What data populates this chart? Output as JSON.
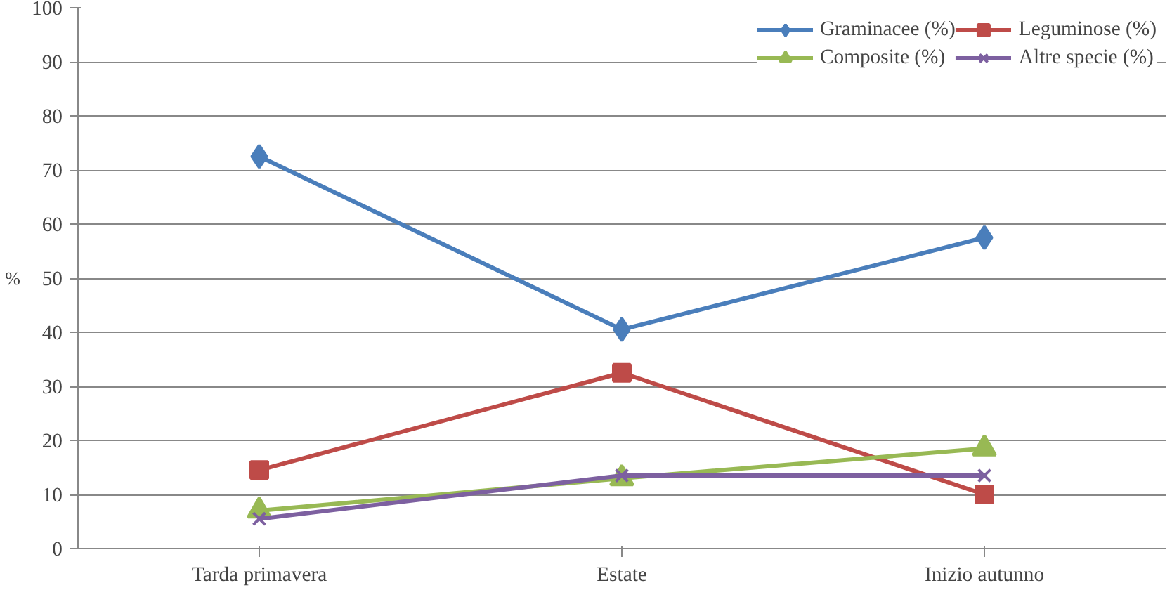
{
  "chart_data": {
    "type": "line",
    "ylabel": "%",
    "categories": [
      "Tarda primavera",
      "Estate",
      "Inizio autunno"
    ],
    "series": [
      {
        "name": "Graminacee (%)",
        "color": "#4a7ebb",
        "marker": "diamond",
        "values": [
          72.5,
          40.5,
          57.5
        ]
      },
      {
        "name": "Leguminose (%)",
        "color": "#be4b48",
        "marker": "square",
        "values": [
          14.5,
          32.5,
          10
        ]
      },
      {
        "name": "Composite (%)",
        "color": "#98b954",
        "marker": "triangle",
        "values": [
          7,
          13,
          18.5
        ]
      },
      {
        "name": "Altre specie (%)",
        "color": "#7d60a0",
        "marker": "x",
        "values": [
          5.5,
          13.5,
          13.5
        ]
      }
    ],
    "ylim": [
      0,
      100
    ],
    "yticks": [
      0,
      10,
      20,
      30,
      40,
      50,
      60,
      70,
      80,
      90,
      100
    ],
    "grid": "y",
    "legend": "top right"
  }
}
